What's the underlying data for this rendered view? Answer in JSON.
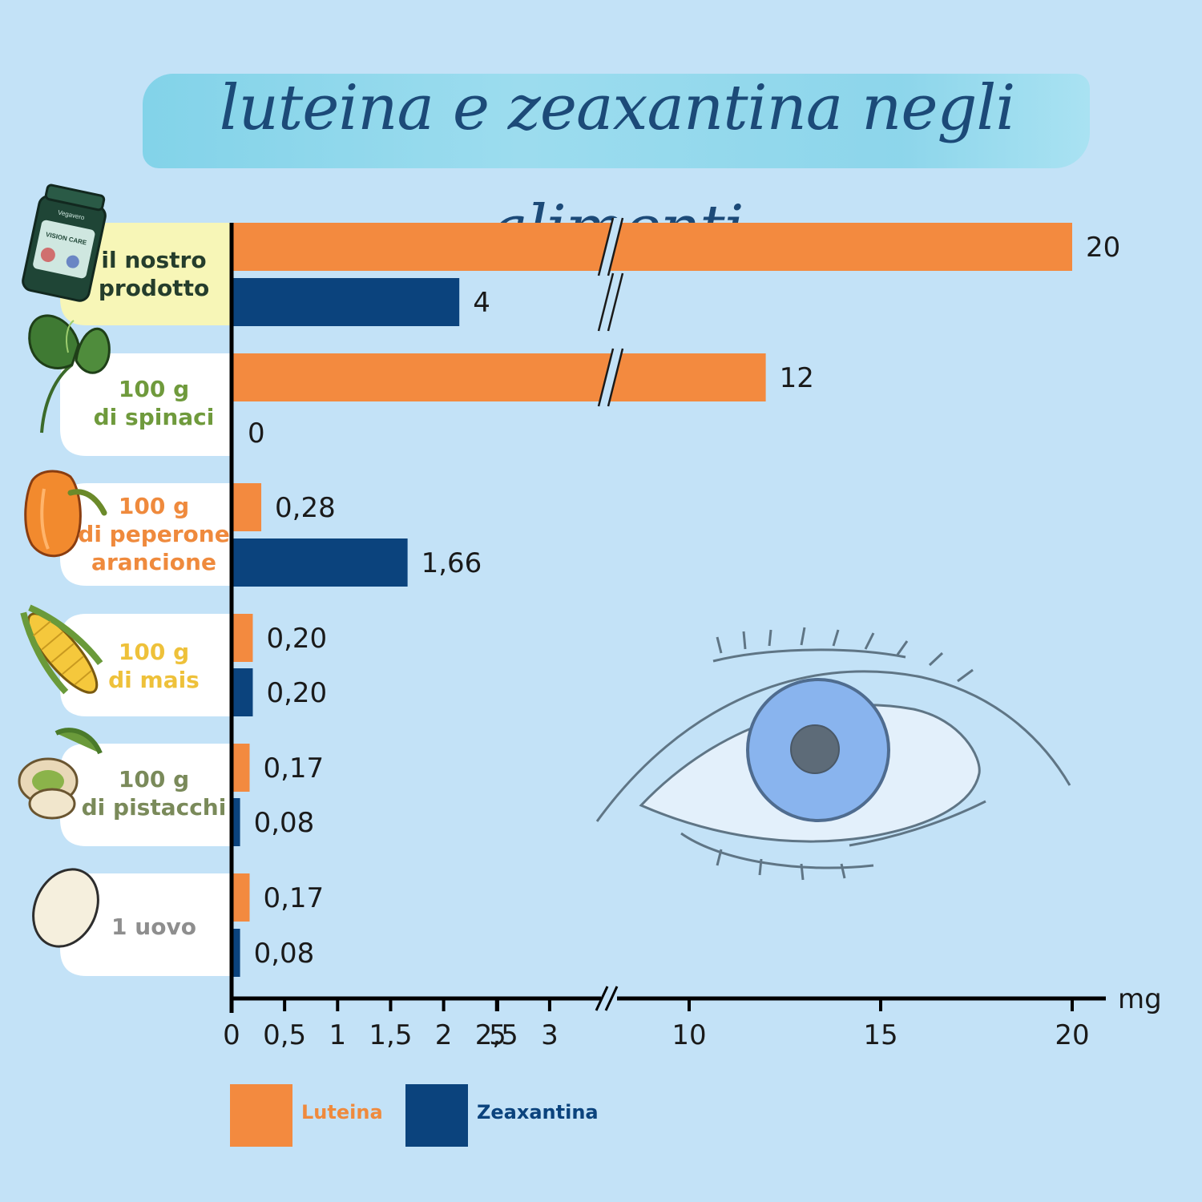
{
  "title": "luteina e zeaxantina negli alimenti",
  "colors": {
    "luteina": "#f38a3f",
    "zeaxantina": "#0b437d",
    "background": "#c3e2f7",
    "highlight": "#f7f6b7",
    "tab": "#ffffff",
    "axis": "#000000"
  },
  "product_icon_text": {
    "brand": "Vegavero",
    "product": "VISION CARE"
  },
  "categories": [
    {
      "label": "il nostro\nprodotto",
      "color": "#253d2c",
      "icon": "supplement-jar-icon"
    },
    {
      "label": "100 g\ndi spinaci",
      "color": "#6f9a3c",
      "icon": "spinach-icon"
    },
    {
      "label": "100 g\ndi peperone\narancione",
      "color": "#ef8a3d",
      "icon": "orange-pepper-icon"
    },
    {
      "label": "100 g\ndi mais",
      "color": "#eec13a",
      "icon": "corn-icon"
    },
    {
      "label": "100 g\ndi pistacchi",
      "color": "#7a8a5a",
      "icon": "pistachio-icon"
    },
    {
      "label": "1 uovo",
      "color": "#8e8e8e",
      "icon": "egg-icon"
    }
  ],
  "legend": [
    {
      "label": "Luteina",
      "color": "#f38a3f",
      "text_color": "#ef8a3d"
    },
    {
      "label": "Zeaxantina",
      "color": "#0b437d",
      "text_color": "#0b437d"
    }
  ],
  "chart_data": {
    "type": "bar",
    "orientation": "horizontal",
    "title": "luteina e zeaxantina negli alimenti",
    "categories": [
      "il nostro prodotto",
      "100 g di spinaci",
      "100 g di peperone arancione",
      "100 g di mais",
      "100 g di pistacchi",
      "1 uovo"
    ],
    "series": [
      {
        "name": "Luteina",
        "values": [
          20,
          12,
          0.28,
          0.2,
          0.17,
          0.17
        ],
        "labels": [
          "20",
          "12",
          "0,28",
          "0,20",
          "0,17",
          "0,17"
        ]
      },
      {
        "name": "Zeaxantina",
        "values": [
          4,
          0,
          1.66,
          0.2,
          0.08,
          0.08
        ],
        "labels": [
          "4",
          "0",
          "1,66",
          "0,20",
          "0,08",
          "0,08"
        ]
      }
    ],
    "xlabel": "mg",
    "x_axis_broken": true,
    "x_ticks_low": [
      0,
      0.5,
      1,
      1.5,
      2,
      2.5,
      3
    ],
    "x_tick_labels_low": [
      "0",
      "0,5",
      "1",
      "1,5",
      "2",
      "2,5",
      "3"
    ],
    "x_ticks_high": [
      5,
      10,
      15,
      20
    ],
    "x_tick_labels_high": [
      "5",
      "10",
      "15",
      "20"
    ],
    "xlim": [
      0,
      20
    ],
    "legend_position": "bottom-left"
  }
}
